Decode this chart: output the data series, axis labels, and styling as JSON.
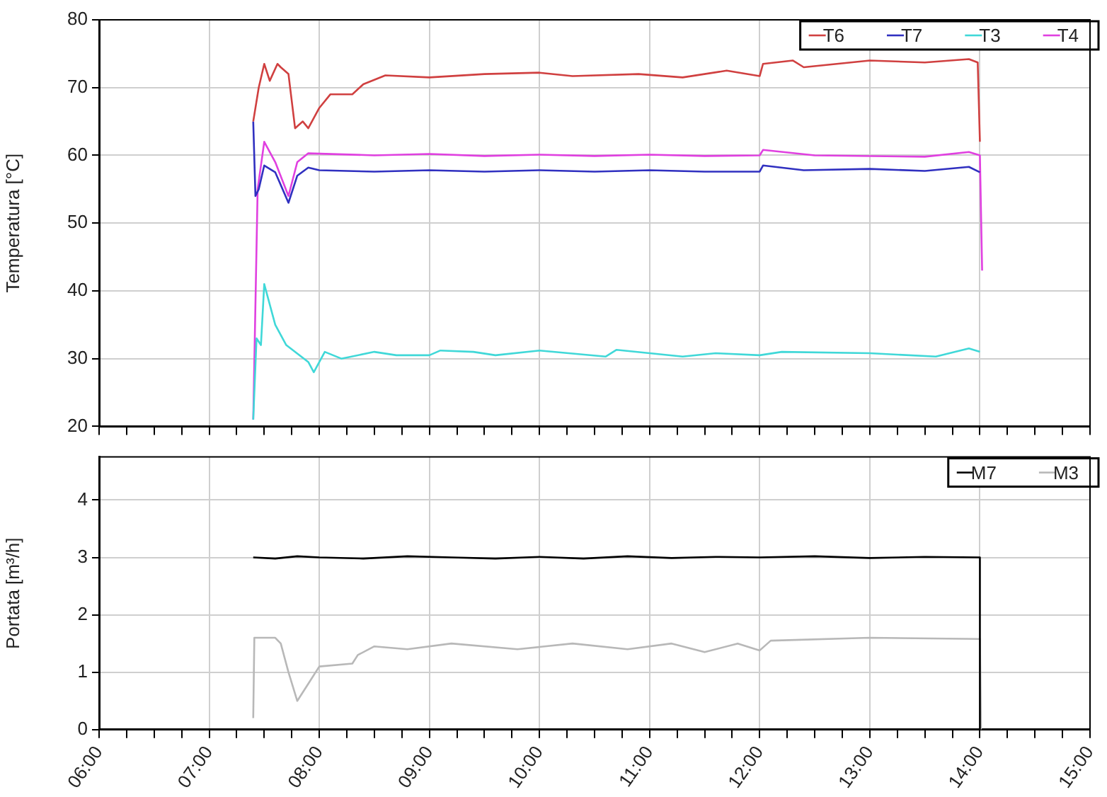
{
  "chart_data": [
    {
      "type": "line",
      "ylabel": "Temperatura [°C]",
      "xlim": [
        6,
        15
      ],
      "ylim": [
        20,
        80
      ],
      "yticks": [
        20,
        30,
        40,
        50,
        60,
        70,
        80
      ],
      "xticks": [
        6,
        {
          "value": 6.25,
          "label": null
        },
        {
          "value": 6.5,
          "label": null
        },
        {
          "value": 6.75,
          "label": null
        },
        7,
        {
          "value": 7.25,
          "label": null
        },
        {
          "value": 7.5,
          "label": null
        },
        {
          "value": 7.75,
          "label": null
        },
        8,
        {
          "value": 8.25,
          "label": null
        },
        {
          "value": 8.5,
          "label": null
        },
        {
          "value": 8.75,
          "label": null
        },
        9,
        {
          "value": 9.25,
          "label": null
        },
        {
          "value": 9.5,
          "label": null
        },
        {
          "value": 9.75,
          "label": null
        },
        10,
        {
          "value": 10.25,
          "label": null
        },
        {
          "value": 10.5,
          "label": null
        },
        {
          "value": 10.75,
          "label": null
        },
        11,
        {
          "value": 11.25,
          "label": null
        },
        {
          "value": 11.5,
          "label": null
        },
        {
          "value": 11.75,
          "label": null
        },
        12,
        {
          "value": 12.25,
          "label": null
        },
        {
          "value": 12.5,
          "label": null
        },
        {
          "value": 12.75,
          "label": null
        },
        13,
        {
          "value": 13.25,
          "label": null
        },
        {
          "value": 13.5,
          "label": null
        },
        {
          "value": 13.75,
          "label": null
        },
        14,
        {
          "value": 14.25,
          "label": null
        },
        {
          "value": 14.5,
          "label": null
        },
        {
          "value": 14.75,
          "label": null
        },
        15
      ],
      "tick_labels": "y",
      "grid": true,
      "legend": "top right",
      "marker": "none",
      "line_style": "solid",
      "series": [
        {
          "name": "T6",
          "color": "#d04040",
          "x": [
            7.4,
            7.45,
            7.5,
            7.55,
            7.62,
            7.65,
            7.72,
            7.78,
            7.85,
            7.9,
            8.0,
            8.1,
            8.3,
            8.4,
            8.6,
            9.0,
            9.5,
            10.0,
            10.3,
            10.9,
            11.3,
            11.7,
            12.0,
            12.03,
            12.3,
            12.4,
            13.0,
            13.5,
            13.9,
            13.98,
            14.0
          ],
          "values": [
            65,
            70,
            73.5,
            71,
            73.5,
            73,
            72,
            64,
            65,
            64,
            67,
            69,
            69,
            70.5,
            71.8,
            71.5,
            72,
            72.2,
            71.7,
            72,
            71.5,
            72.5,
            71.7,
            73.5,
            74,
            73,
            74,
            73.7,
            74.2,
            73.7,
            62
          ]
        },
        {
          "name": "T7",
          "color": "#3030c0",
          "x": [
            7.4,
            7.42,
            7.45,
            7.5,
            7.6,
            7.72,
            7.8,
            7.9,
            8.0,
            8.5,
            9.0,
            9.5,
            10.0,
            10.5,
            11.0,
            11.5,
            12.0,
            12.03,
            12.4,
            13.0,
            13.5,
            13.9,
            14.0
          ],
          "values": [
            65,
            54,
            55,
            58.5,
            57.5,
            53,
            57,
            58.2,
            57.8,
            57.6,
            57.8,
            57.6,
            57.8,
            57.6,
            57.8,
            57.6,
            57.6,
            58.5,
            57.8,
            58,
            57.7,
            58.3,
            57.5
          ]
        },
        {
          "name": "T3",
          "color": "#40d8d8",
          "x": [
            7.4,
            7.43,
            7.47,
            7.5,
            7.6,
            7.7,
            7.9,
            7.95,
            8.05,
            8.2,
            8.5,
            8.7,
            9.0,
            9.1,
            9.4,
            9.6,
            10.0,
            10.6,
            10.7,
            11.0,
            11.3,
            11.6,
            12.0,
            12.2,
            13.0,
            13.6,
            13.9,
            14.0
          ],
          "values": [
            21,
            33,
            32,
            41,
            35,
            32,
            29.5,
            28,
            31,
            30,
            31,
            30.5,
            30.5,
            31.2,
            31,
            30.5,
            31.2,
            30.3,
            31.3,
            30.8,
            30.3,
            30.8,
            30.5,
            31,
            30.8,
            30.3,
            31.5,
            31
          ]
        },
        {
          "name": "T4",
          "color": "#e040e0",
          "x": [
            7.4,
            7.44,
            7.5,
            7.6,
            7.72,
            7.8,
            7.9,
            8.5,
            9.0,
            9.5,
            10.0,
            10.5,
            11.0,
            11.5,
            12.0,
            12.03,
            12.5,
            13.5,
            13.9,
            14.0,
            14.02
          ],
          "values": [
            21,
            55,
            62,
            59,
            54,
            59,
            60.3,
            60,
            60.2,
            59.9,
            60.1,
            59.9,
            60.1,
            59.9,
            60,
            60.8,
            60,
            59.8,
            60.5,
            60,
            43
          ]
        }
      ]
    },
    {
      "type": "line",
      "ylabel": "Portata [m³/h]",
      "xlim": [
        6,
        15
      ],
      "ylim": [
        0,
        4.75
      ],
      "yticks": [
        0,
        1,
        2,
        3,
        4
      ],
      "xticks": [
        {
          "value": 6,
          "label": "06:00"
        },
        {
          "value": 6.25,
          "label": null
        },
        {
          "value": 6.5,
          "label": null
        },
        {
          "value": 6.75,
          "label": null
        },
        {
          "value": 7,
          "label": "07:00"
        },
        {
          "value": 7.25,
          "label": null
        },
        {
          "value": 7.5,
          "label": null
        },
        {
          "value": 7.75,
          "label": null
        },
        {
          "value": 8,
          "label": "08:00"
        },
        {
          "value": 8.25,
          "label": null
        },
        {
          "value": 8.5,
          "label": null
        },
        {
          "value": 8.75,
          "label": null
        },
        {
          "value": 9,
          "label": "09:00"
        },
        {
          "value": 9.25,
          "label": null
        },
        {
          "value": 9.5,
          "label": null
        },
        {
          "value": 9.75,
          "label": null
        },
        {
          "value": 10,
          "label": "10:00"
        },
        {
          "value": 10.25,
          "label": null
        },
        {
          "value": 10.5,
          "label": null
        },
        {
          "value": 10.75,
          "label": null
        },
        {
          "value": 11,
          "label": "11:00"
        },
        {
          "value": 11.25,
          "label": null
        },
        {
          "value": 11.5,
          "label": null
        },
        {
          "value": 11.75,
          "label": null
        },
        {
          "value": 12,
          "label": "12:00"
        },
        {
          "value": 12.25,
          "label": null
        },
        {
          "value": 12.5,
          "label": null
        },
        {
          "value": 12.75,
          "label": null
        },
        {
          "value": 13,
          "label": "13:00"
        },
        {
          "value": 13.25,
          "label": null
        },
        {
          "value": 13.5,
          "label": null
        },
        {
          "value": 13.75,
          "label": null
        },
        {
          "value": 14,
          "label": "14:00"
        },
        {
          "value": 14.25,
          "label": null
        },
        {
          "value": 14.5,
          "label": null
        },
        {
          "value": 14.75,
          "label": null
        },
        {
          "value": 15,
          "label": "15:00"
        }
      ],
      "grid": true,
      "legend": "top right",
      "marker": "none",
      "line_style": "solid",
      "series": [
        {
          "name": "M7",
          "color": "#000000",
          "x": [
            7.4,
            7.6,
            7.8,
            8.0,
            8.4,
            8.8,
            9.2,
            9.6,
            10.0,
            10.4,
            10.8,
            11.2,
            11.6,
            12.0,
            12.5,
            13.0,
            13.5,
            14.0,
            14.0
          ],
          "values": [
            3,
            2.98,
            3.02,
            3,
            2.98,
            3.02,
            3,
            2.98,
            3.01,
            2.98,
            3.02,
            2.99,
            3.01,
            3,
            3.02,
            2.99,
            3.01,
            3,
            0
          ]
        },
        {
          "name": "M3",
          "color": "#b8b8b8",
          "x": [
            7.4,
            7.41,
            7.6,
            7.65,
            7.72,
            7.8,
            7.9,
            8.0,
            8.3,
            8.35,
            8.5,
            8.8,
            9.2,
            9.8,
            10.3,
            10.8,
            11.2,
            11.5,
            11.8,
            12.0,
            12.1,
            13.0,
            14.0,
            14.01
          ],
          "values": [
            0.2,
            1.6,
            1.6,
            1.5,
            1.0,
            0.5,
            0.8,
            1.1,
            1.15,
            1.3,
            1.45,
            1.4,
            1.5,
            1.4,
            1.5,
            1.4,
            1.5,
            1.35,
            1.5,
            1.38,
            1.55,
            1.6,
            1.58,
            0
          ]
        }
      ]
    }
  ]
}
